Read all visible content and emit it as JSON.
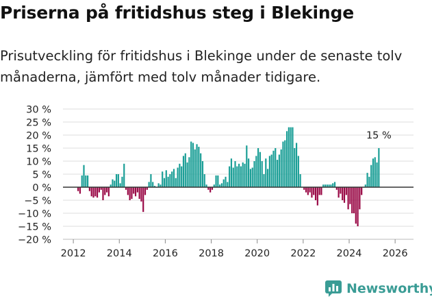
{
  "title": "Priserna på fritidshus steg i Blekinge",
  "subtitle": "Prisutveckling för fritidshus i Blekinge under de senaste tolv månaderna, jämfört med tolv månader tidigare.",
  "brand": {
    "name": "Newsworthy",
    "icon": "newsworthy-logo-icon"
  },
  "colors": {
    "positive": "#1a9e96",
    "negative": "#990845",
    "grid": "#dddddd",
    "zero_line": "#333333"
  },
  "chart_data": {
    "type": "bar",
    "title": "Priserna på fritidshus steg i Blekinge",
    "xlabel": "",
    "ylabel": "",
    "ylim": [
      -20,
      30
    ],
    "y_ticks": [
      -20,
      -15,
      -10,
      -5,
      0,
      5,
      10,
      15,
      20,
      25,
      30
    ],
    "y_tick_labels": [
      "−20 %",
      "−15 %",
      "−10 %",
      "−5 %",
      "0 %",
      "5 %",
      "10 %",
      "15 %",
      "20 %",
      "25 %",
      "30 %"
    ],
    "x_ticks": [
      2012,
      2014,
      2016,
      2018,
      2020,
      2022,
      2024,
      2026
    ],
    "x_tick_labels": [
      "2012",
      "2014",
      "2016",
      "2018",
      "2020",
      "2022",
      "2024",
      "2026"
    ],
    "grid": true,
    "start": "2012-03",
    "frequency": "monthly",
    "unit": "%",
    "values": [
      -1.5,
      -2.5,
      4.5,
      8.5,
      4.5,
      4.5,
      -1.5,
      -3.5,
      -4,
      -3.5,
      -4,
      -2,
      -1,
      -5,
      -3,
      -2,
      -3.5,
      1,
      3,
      2.5,
      5,
      5,
      1.5,
      4,
      9,
      -1,
      -3,
      -5,
      -4.5,
      -2.5,
      -3.5,
      -2,
      -4.5,
      -5.5,
      -9.5,
      -3,
      -1,
      2,
      5,
      2,
      0.5,
      0,
      1.5,
      1,
      6,
      3.5,
      6.5,
      4,
      5,
      6,
      7,
      3.5,
      7.5,
      9,
      8,
      12,
      13,
      9.5,
      11.5,
      17.5,
      17,
      14.5,
      16.5,
      15.5,
      13,
      10,
      5,
      1,
      -1,
      -2,
      -1,
      1,
      4.5,
      4.5,
      1,
      1.5,
      3,
      4,
      2,
      8,
      11,
      7.5,
      10,
      8,
      9,
      8,
      9.5,
      9,
      16,
      11,
      7,
      7.5,
      10,
      12,
      15,
      13.5,
      10,
      5,
      11,
      7,
      12,
      12.5,
      14,
      15,
      10.5,
      12.5,
      14.5,
      17.5,
      18,
      21.5,
      23,
      23,
      23,
      15,
      17,
      12,
      5,
      0,
      -1,
      -2,
      -3,
      -2,
      -4,
      -3,
      -5,
      -7,
      -3,
      -3,
      1,
      1,
      1,
      1,
      1,
      1.5,
      2,
      -1,
      -4,
      -2.5,
      -5,
      -6,
      -3,
      -8.5,
      -6.5,
      -10,
      -10,
      -14,
      -15,
      -8.5,
      -3,
      0,
      1,
      5.5,
      4,
      8.5,
      11,
      11.5,
      9.5,
      15
    ],
    "annotation": {
      "text": "15 %",
      "target": "last"
    }
  }
}
